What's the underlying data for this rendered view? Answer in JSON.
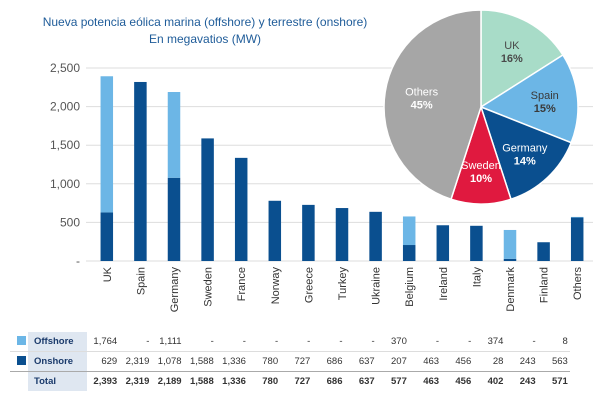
{
  "title_lines": [
    "Nueva potencia eólica marina (offshore) y terrestre (onshore)",
    "En megavatios (MW)"
  ],
  "colors": {
    "offshore": "#6cb6e6",
    "onshore": "#0a4f8f",
    "axis_text": "#555555",
    "grid": "#dddddd"
  },
  "chart_data": [
    {
      "type": "bar",
      "stacked": true,
      "categories": [
        "UK",
        "Spain",
        "Germany",
        "Sweden",
        "France",
        "Norway",
        "Greece",
        "Turkey",
        "Ukraine",
        "Belgium",
        "Ireland",
        "Italy",
        "Denmark",
        "Finland",
        "Others"
      ],
      "series": [
        {
          "name": "Onshore",
          "values": [
            629,
            2319,
            1078,
            1588,
            1336,
            780,
            727,
            686,
            637,
            207,
            463,
            456,
            28,
            243,
            563
          ]
        },
        {
          "name": "Offshore",
          "values": [
            1764,
            0,
            1111,
            0,
            0,
            0,
            0,
            0,
            0,
            370,
            0,
            0,
            374,
            0,
            8
          ]
        }
      ],
      "yticks": [
        "-",
        "500",
        "1,000",
        "1,500",
        "2,000",
        "2,500"
      ],
      "ylim": [
        0,
        2500
      ],
      "grid": true
    },
    {
      "type": "pie",
      "slices": [
        {
          "label": "UK",
          "value": 16,
          "display": "16%",
          "color": "#a8dcc8",
          "text_color": "#4a4a4a"
        },
        {
          "label": "Spain",
          "value": 15,
          "display": "15%",
          "color": "#6cb6e6",
          "text_color": "#3a3a3a"
        },
        {
          "label": "Germany",
          "value": 14,
          "display": "14%",
          "color": "#0a4f8f",
          "text_color": "#ffffff"
        },
        {
          "label": "Sweden",
          "value": 10,
          "display": "10%",
          "color": "#e0193f",
          "text_color": "#ffffff"
        },
        {
          "label": "Others",
          "value": 45,
          "display": "45%",
          "color": "#a6a6a6",
          "text_color": "#ffffff"
        }
      ]
    }
  ],
  "table": {
    "rows": [
      {
        "label": "Offshore",
        "series": "offshore",
        "cells": [
          "1,764",
          "-",
          "1,111",
          "-",
          "-",
          "-",
          "-",
          "-",
          "-",
          "370",
          "-",
          "-",
          "374",
          "-",
          "8"
        ]
      },
      {
        "label": "Onshore",
        "series": "onshore",
        "cells": [
          "629",
          "2,319",
          "1,078",
          "1,588",
          "1,336",
          "780",
          "727",
          "686",
          "637",
          "207",
          "463",
          "456",
          "28",
          "243",
          "563"
        ]
      },
      {
        "label": "Total",
        "series": "total",
        "cells": [
          "2,393",
          "2,319",
          "2,189",
          "1,588",
          "1,336",
          "780",
          "727",
          "686",
          "637",
          "577",
          "463",
          "456",
          "402",
          "243",
          "571"
        ]
      }
    ]
  }
}
